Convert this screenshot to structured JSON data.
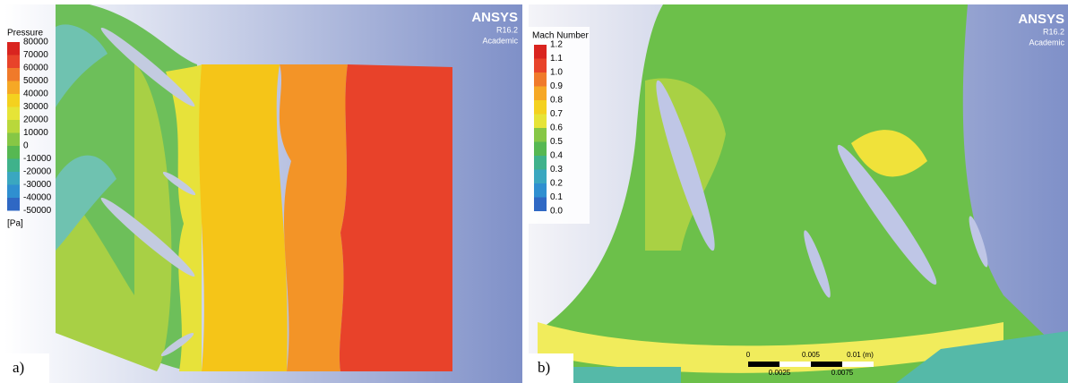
{
  "panel_a": {
    "label": "a)",
    "legend": {
      "title": "Pressure",
      "ticks": [
        "80000",
        "70000",
        "60000",
        "50000",
        "40000",
        "30000",
        "20000",
        "10000",
        "0",
        "-10000",
        "-20000",
        "-30000",
        "-40000",
        "-50000"
      ],
      "unit": "[Pa]"
    },
    "brand": {
      "name": "ANSYS",
      "version": "R16.2",
      "edition": "Academic"
    }
  },
  "panel_b": {
    "label": "b)",
    "legend": {
      "title": "Mach Number",
      "ticks": [
        "1.2",
        "1.1",
        "1.0",
        "0.9",
        "0.8",
        "0.7",
        "0.6",
        "0.5",
        "0.4",
        "0.3",
        "0.2",
        "0.1",
        "0.0"
      ]
    },
    "brand": {
      "name": "ANSYS",
      "version": "R16.2",
      "edition": "Academic"
    },
    "scale_bar": {
      "top": [
        "0",
        "0.005",
        "0.01 (m)"
      ],
      "bottom": [
        "0.0025",
        "0.0075"
      ]
    }
  }
}
